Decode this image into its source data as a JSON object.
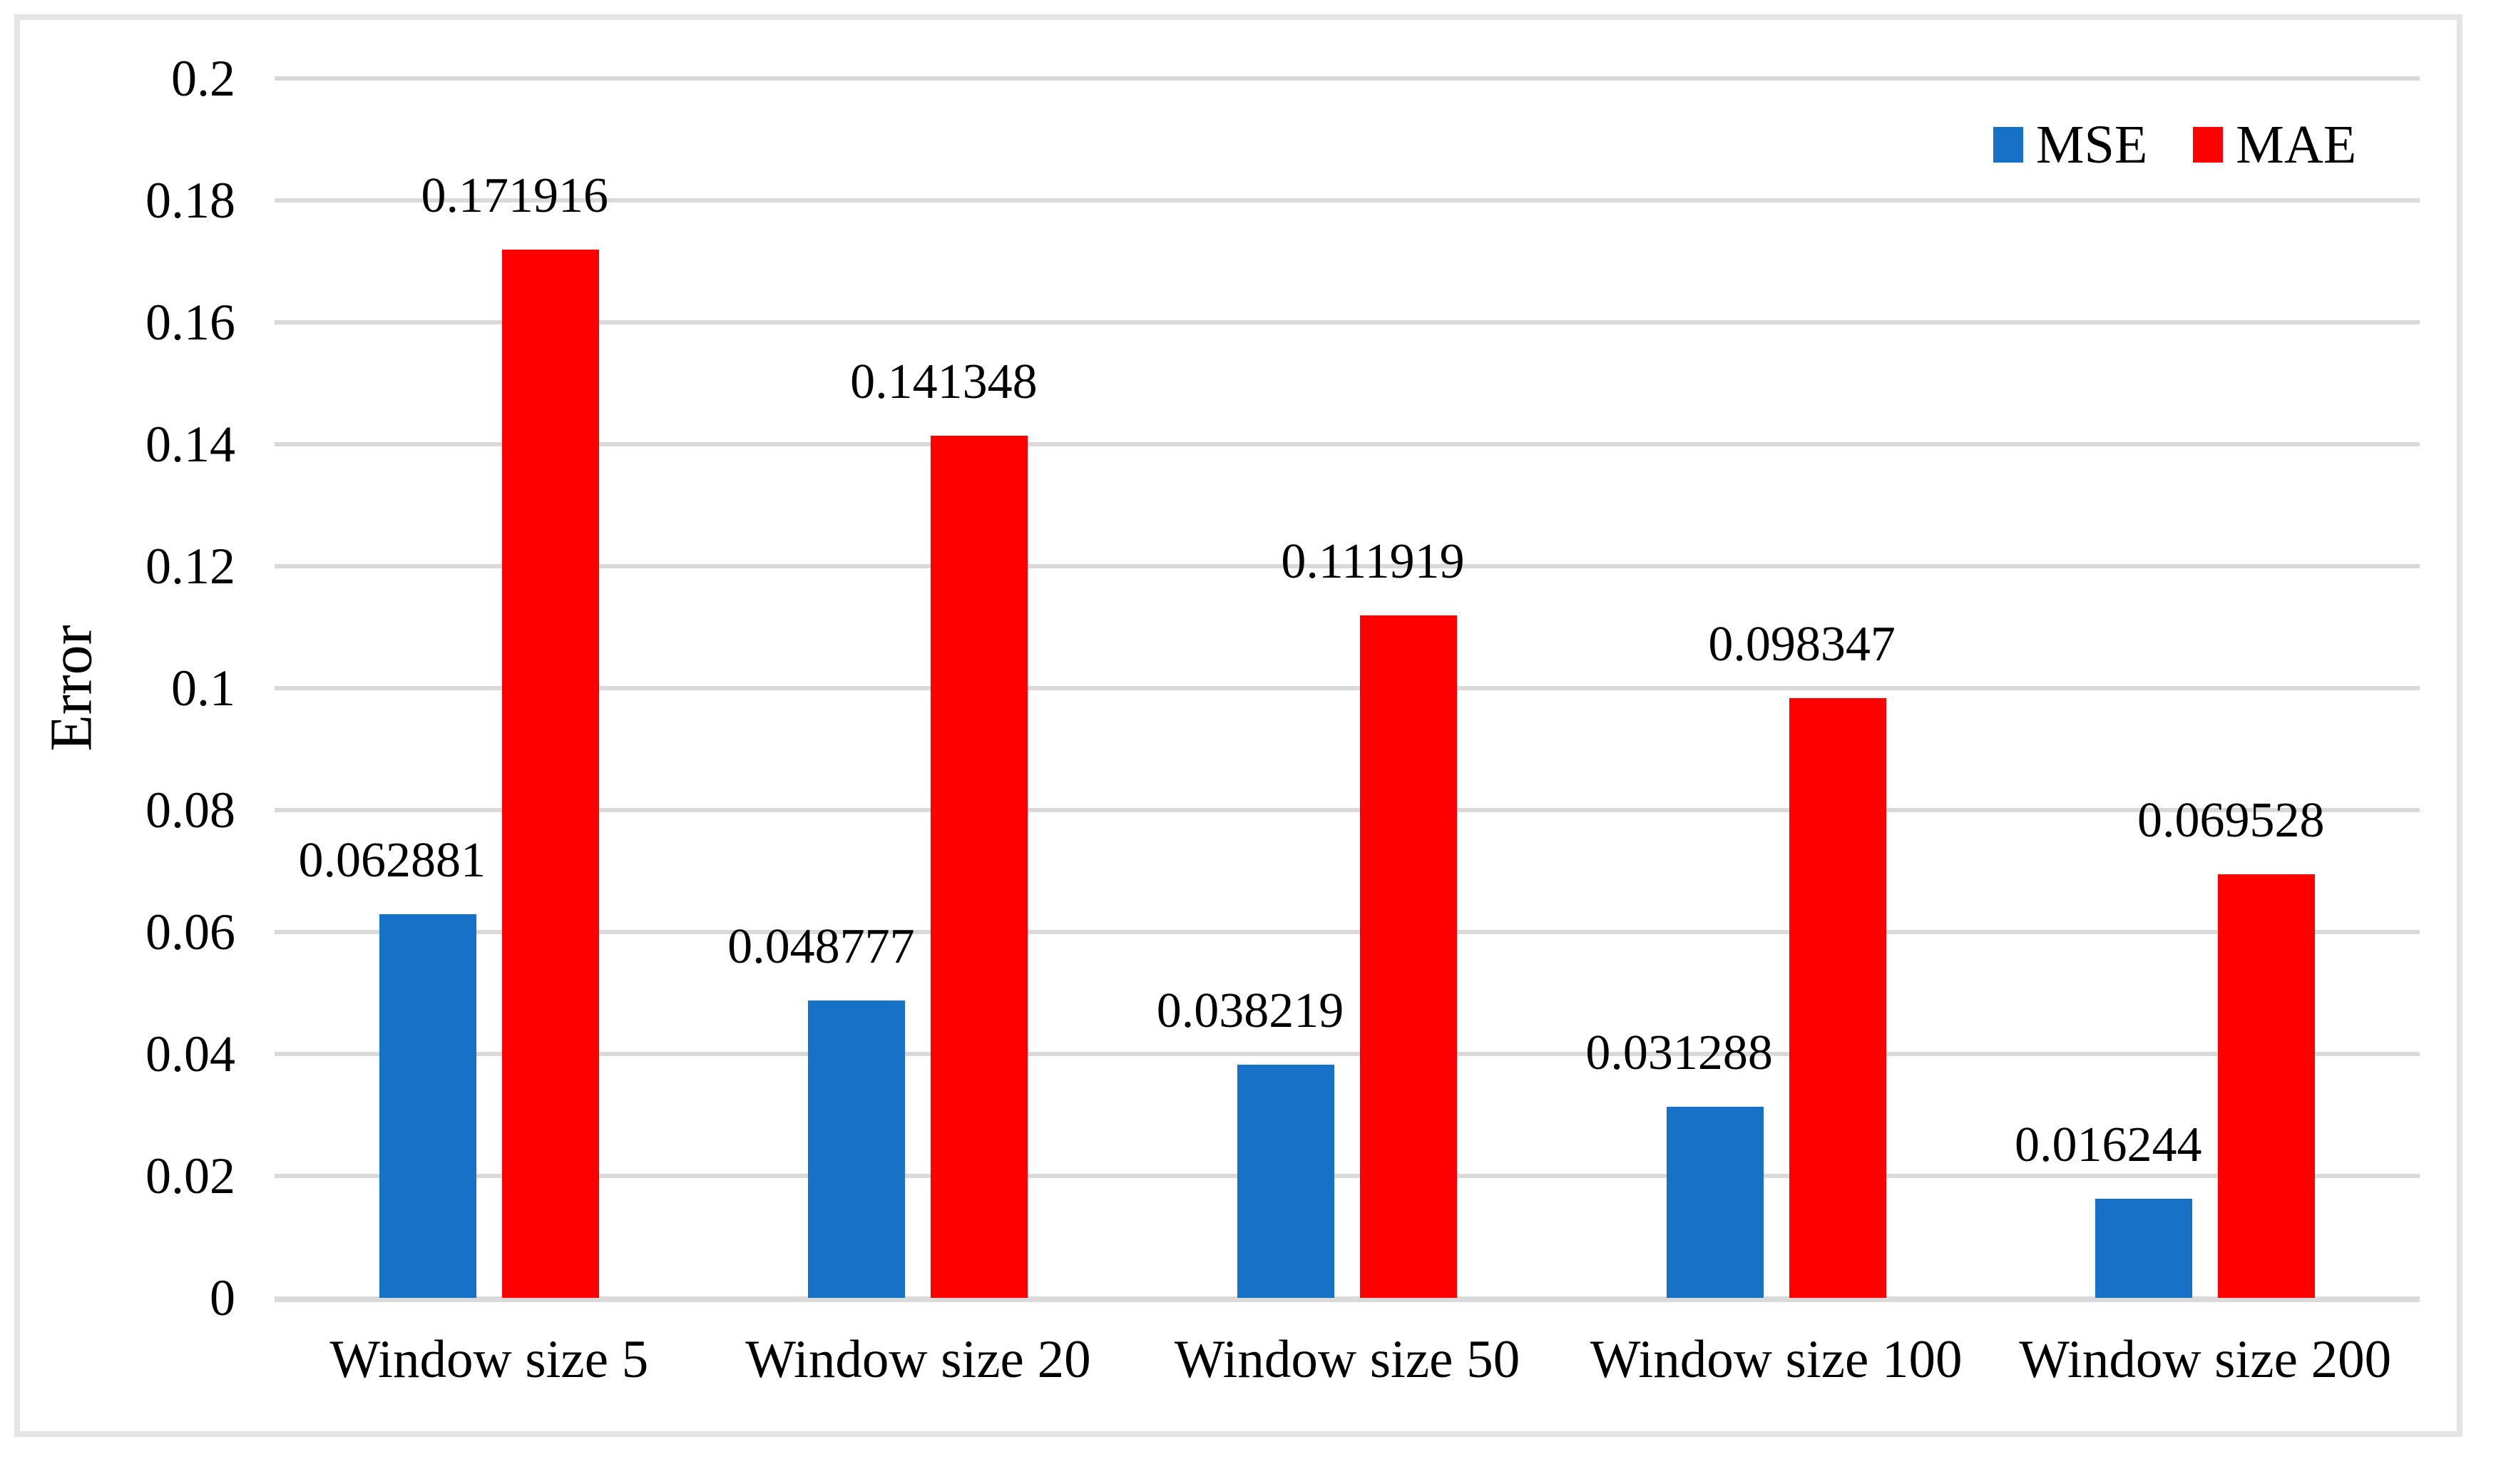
{
  "figure": {
    "background": "#FFFFFF",
    "border_color": "#E4E4E4"
  },
  "chart_data": {
    "type": "bar",
    "title": "",
    "xlabel": "",
    "ylabel": "Error",
    "categories": [
      "Window size 5",
      "Window size 20",
      "Window size 50",
      "Window size 100",
      "Window size 200"
    ],
    "series": [
      {
        "name": "MSE",
        "color": "#1772C7",
        "values": [
          0.062881,
          0.048777,
          0.038219,
          0.031288,
          0.016244
        ],
        "data_labels": [
          "0.062881",
          "0.048777",
          "0.038219",
          "0.031288",
          "0.016244"
        ]
      },
      {
        "name": "MAE",
        "color": "#FF0000",
        "values": [
          0.171916,
          0.141348,
          0.111919,
          0.098347,
          0.069528
        ],
        "data_labels": [
          "0.171916",
          "0.141348",
          "0.111919",
          "0.098347",
          "0.069528"
        ]
      }
    ],
    "ylim": [
      0,
      0.2
    ],
    "yticks": [
      0,
      0.02,
      0.04,
      0.06,
      0.08,
      0.1,
      0.12,
      0.14,
      0.16,
      0.18,
      0.2
    ],
    "ytick_labels": [
      "0",
      "0.02",
      "0.04",
      "0.06",
      "0.08",
      "0.1",
      "0.12",
      "0.14",
      "0.16",
      "0.18",
      "0.2"
    ],
    "grid": true,
    "gridline_color": "#D9D9D9",
    "legend": {
      "position": "top-right",
      "entries": [
        "MSE",
        "MAE"
      ]
    }
  }
}
